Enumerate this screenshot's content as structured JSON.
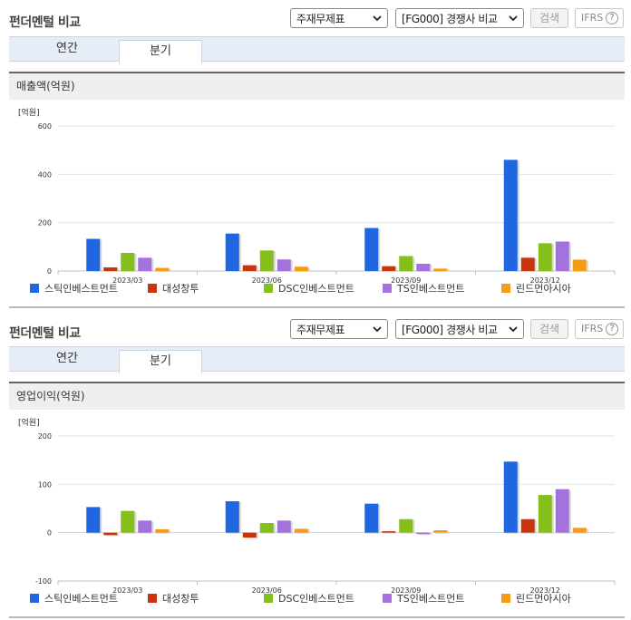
{
  "sections": [
    {
      "title": "펀더멘털 비교",
      "select_statement": "주재무제표",
      "select_compare": "[FG000] 경쟁사 비교",
      "search_label": "검색",
      "ifrs_label": "IFRS",
      "ifrs_help": "?",
      "tabs": [
        {
          "label": "연간"
        },
        {
          "label": "분기"
        }
      ],
      "chart_header": "매출액(억원)"
    },
    {
      "title": "펀더멘털 비교",
      "select_statement": "주재무제표",
      "select_compare": "[FG000] 경쟁사 비교",
      "search_label": "검색",
      "ifrs_label": "IFRS",
      "ifrs_help": "?",
      "tabs": [
        {
          "label": "연간"
        },
        {
          "label": "분기"
        }
      ],
      "chart_header": "영업이익(억원)"
    }
  ],
  "colors": [
    "#1f66e0",
    "#c8340f",
    "#84bf1c",
    "#a472dc",
    "#f59b14"
  ],
  "chart_data": [
    {
      "type": "bar",
      "unit_label": "[억원]",
      "categories": [
        "2023/03",
        "2023/06",
        "2023/09",
        "2023/12"
      ],
      "ylim": [
        0,
        600
      ],
      "yticks": [
        0,
        200,
        400,
        600
      ],
      "grid": true,
      "legend_position": "bottom",
      "series": [
        {
          "name": "스틱인베스트먼트",
          "values": [
            133,
            155,
            178,
            460
          ]
        },
        {
          "name": "대성창투",
          "values": [
            15,
            24,
            20,
            55
          ]
        },
        {
          "name": "DSC인베스트먼트",
          "values": [
            75,
            85,
            62,
            115
          ]
        },
        {
          "name": "TS인베스트먼트",
          "values": [
            55,
            48,
            30,
            122
          ]
        },
        {
          "name": "린드먼아시아",
          "values": [
            13,
            18,
            10,
            47
          ]
        }
      ]
    },
    {
      "type": "bar",
      "unit_label": "[억원]",
      "categories": [
        "2023/03",
        "2023/06",
        "2023/09",
        "2023/12"
      ],
      "ylim": [
        -100,
        200
      ],
      "yticks": [
        -100,
        0,
        100,
        200
      ],
      "grid": true,
      "legend_position": "bottom",
      "series": [
        {
          "name": "스틱인베스트먼트",
          "values": [
            53,
            65,
            60,
            147
          ]
        },
        {
          "name": "대성창투",
          "values": [
            -5,
            -10,
            3,
            28
          ]
        },
        {
          "name": "DSC인베스트먼트",
          "values": [
            45,
            20,
            28,
            78
          ]
        },
        {
          "name": "TS인베스트먼트",
          "values": [
            25,
            25,
            0,
            90
          ]
        },
        {
          "name": "린드먼아시아",
          "values": [
            7,
            8,
            5,
            10
          ]
        }
      ]
    }
  ]
}
